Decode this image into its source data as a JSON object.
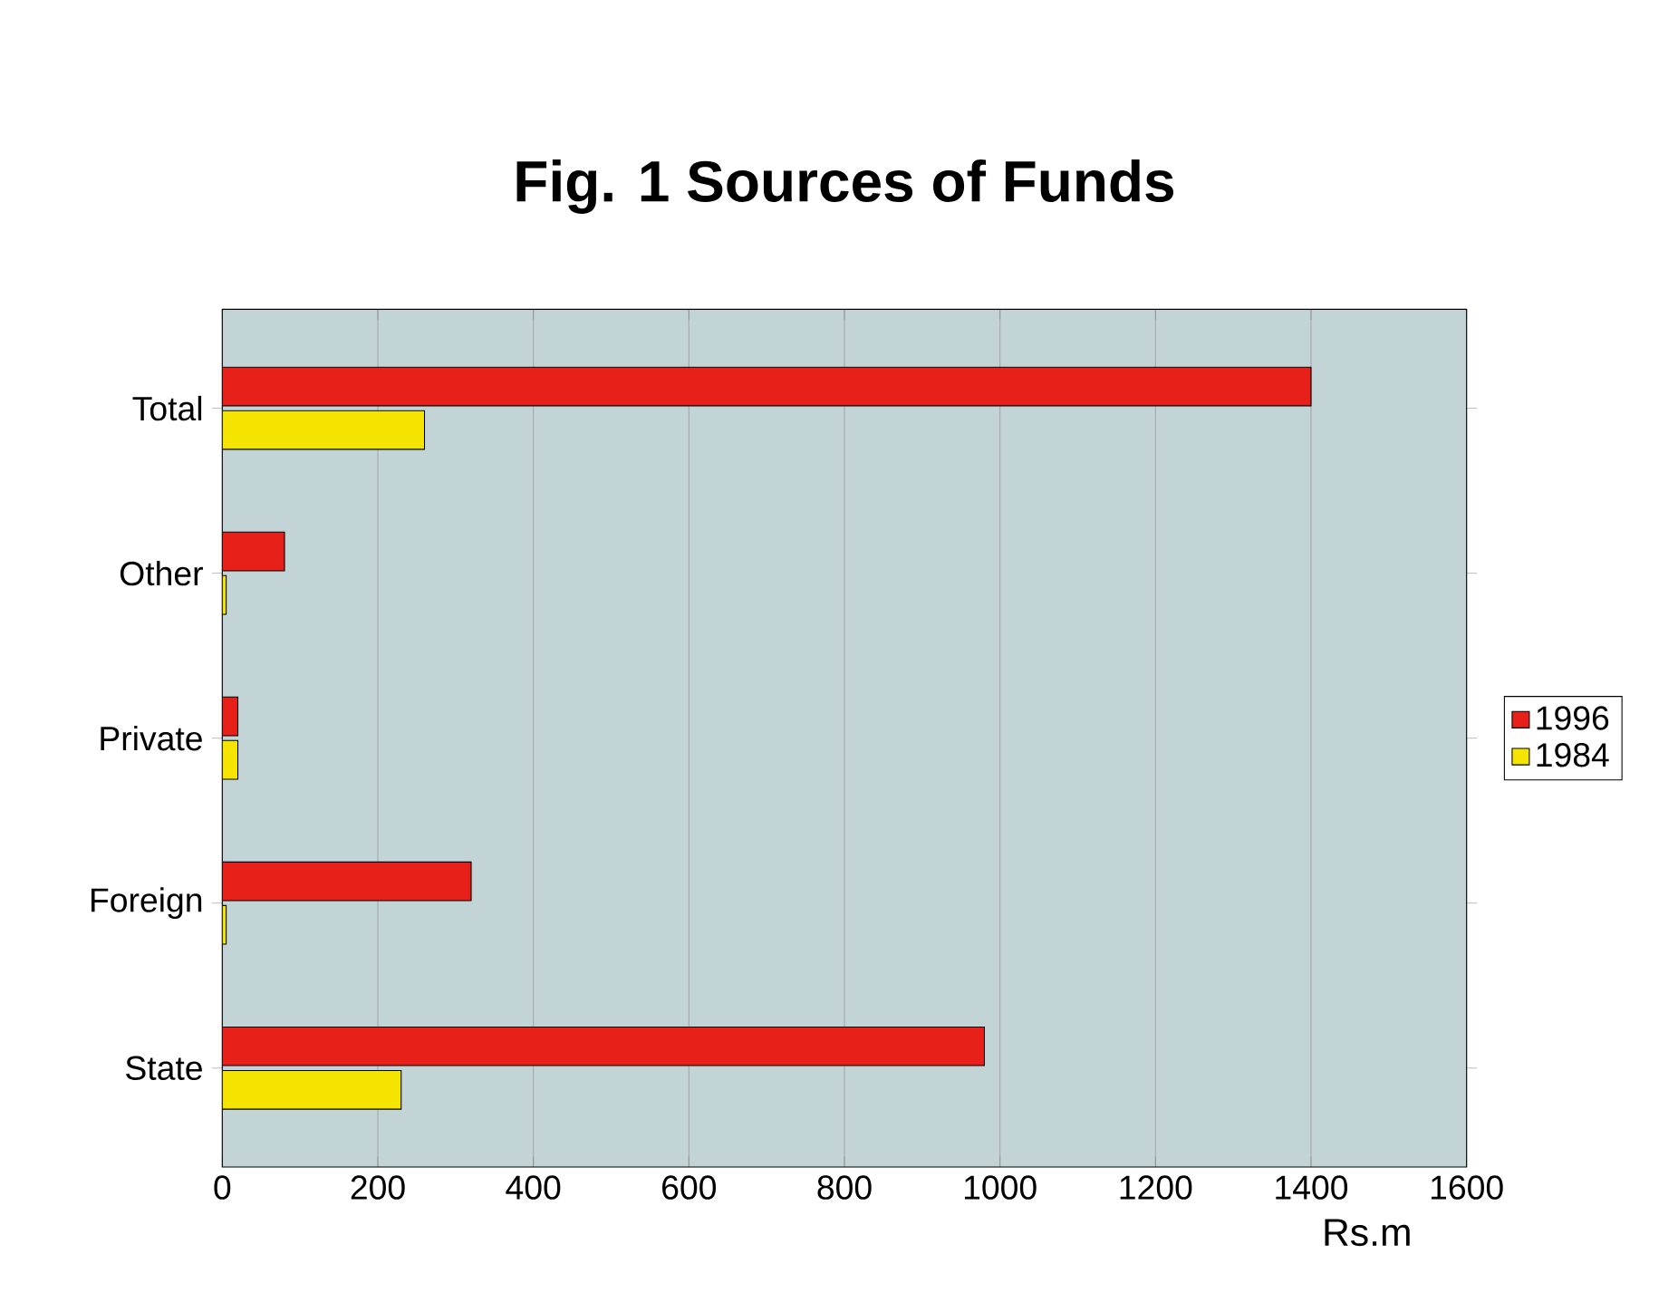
{
  "chart_data": {
    "type": "bar",
    "orientation": "horizontal",
    "title": "Fig. 1  Sources of Funds",
    "xlabel": "Rs.m",
    "categories": [
      "Total",
      "Other",
      "Private",
      "Foreign",
      "State"
    ],
    "series": [
      {
        "name": "1996",
        "color": "#e8201a",
        "values": [
          1400,
          80,
          20,
          320,
          980
        ]
      },
      {
        "name": "1984",
        "color": "#f5e400",
        "values": [
          260,
          5,
          20,
          5,
          230
        ]
      }
    ],
    "xlim": [
      0,
      1600
    ],
    "xticks": [
      0,
      200,
      400,
      600,
      800,
      1000,
      1200,
      1400,
      1600
    ],
    "grid": "x",
    "legend": "right"
  }
}
